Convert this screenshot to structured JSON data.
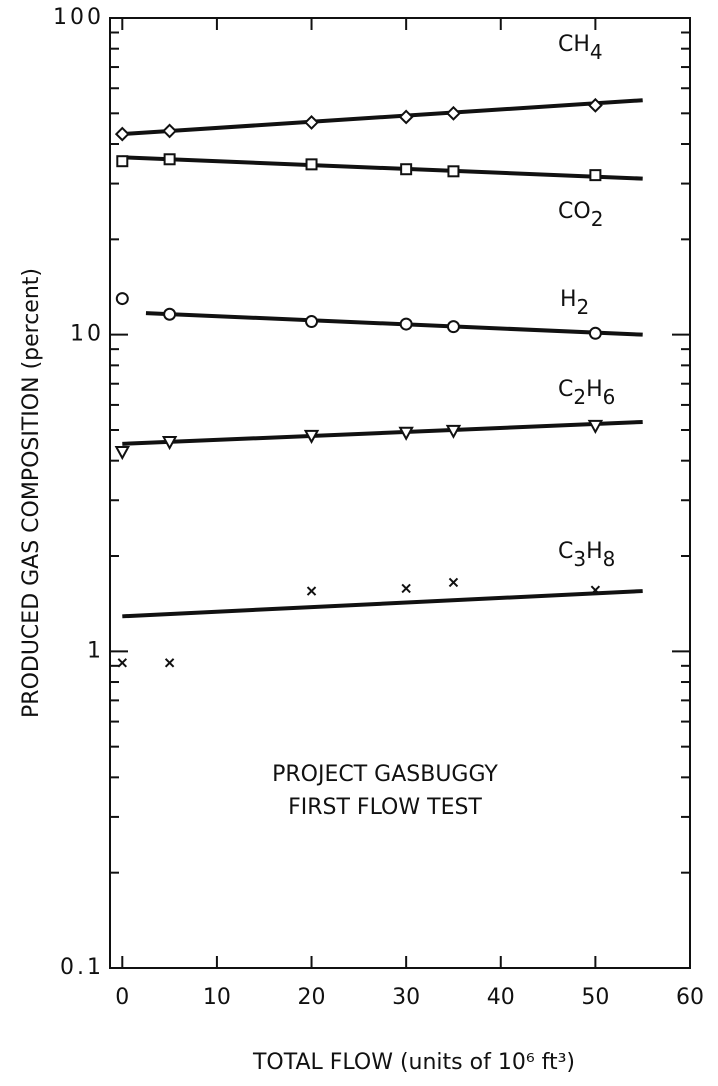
{
  "chart_data": {
    "type": "scatter",
    "xlabel": "TOTAL FLOW (units of 10⁶ ft³)",
    "ylabel": "PRODUCED GAS COMPOSITION (percent)",
    "annotations": [
      "PROJECT GASBUGGY",
      "FIRST FLOW TEST"
    ],
    "xlim": [
      -1.3,
      60
    ],
    "xticks": [
      0,
      10,
      20,
      30,
      40,
      50,
      60
    ],
    "ylim": [
      0.1,
      100
    ],
    "yscale": "log",
    "yticks": [
      0.1,
      1,
      10,
      100
    ],
    "yminor_ticks": [
      0.2,
      0.3,
      0.4,
      0.5,
      0.6,
      0.7,
      0.8,
      0.9,
      2,
      3,
      4,
      5,
      6,
      7,
      8,
      9,
      20,
      30,
      40,
      50,
      60,
      70,
      80,
      90
    ],
    "series": [
      {
        "name": "CH4",
        "color": "#111111",
        "marker": "diamond",
        "x": [
          0,
          5,
          20,
          30,
          35,
          50
        ],
        "values": [
          43,
          44,
          46.8,
          48.7,
          50,
          53
        ],
        "fit": {
          "x": [
            0,
            55
          ],
          "values": [
            43,
            55
          ]
        }
      },
      {
        "name": "CO2",
        "color": "#111111",
        "marker": "square",
        "x": [
          0,
          5,
          20,
          30,
          35,
          50
        ],
        "values": [
          35.3,
          35.8,
          34.5,
          33.3,
          32.8,
          31.9
        ],
        "fit": {
          "x": [
            0,
            55
          ],
          "values": [
            36.3,
            31.1
          ]
        }
      },
      {
        "name": "H2",
        "color": "#111111",
        "marker": "circle",
        "x": [
          0,
          5,
          20,
          30,
          35,
          50
        ],
        "values": [
          13,
          11.6,
          11,
          10.8,
          10.6,
          10.1
        ],
        "fit": {
          "x": [
            2.5,
            55
          ],
          "values": [
            11.7,
            10
          ]
        }
      },
      {
        "name": "C2H6",
        "color": "#111111",
        "marker": "triangle",
        "x": [
          0,
          5,
          20,
          30,
          35,
          50
        ],
        "values": [
          4.26,
          4.58,
          4.79,
          4.9,
          4.97,
          5.15
        ],
        "fit": {
          "x": [
            0,
            55
          ],
          "values": [
            4.52,
            5.3
          ]
        }
      },
      {
        "name": "C3H8",
        "color": "#111111",
        "marker": "x",
        "x": [
          0,
          5,
          20,
          30,
          35,
          50
        ],
        "values": [
          0.92,
          0.92,
          1.55,
          1.58,
          1.65,
          1.56
        ],
        "fit": {
          "x": [
            0,
            55
          ],
          "values": [
            1.29,
            1.55
          ]
        }
      }
    ]
  }
}
